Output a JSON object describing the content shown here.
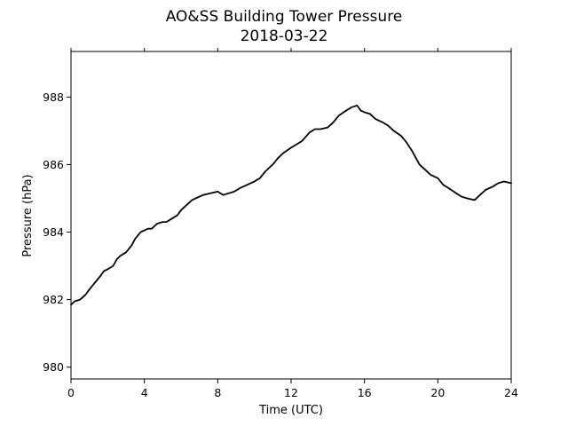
{
  "chart_data": {
    "type": "line",
    "title": "AO&SS Building Tower Pressure",
    "subtitle": "2018-03-22",
    "xlabel": "Time (UTC)",
    "ylabel": "Pressure (hPa)",
    "xlim": [
      0,
      24
    ],
    "ylim": [
      979.65,
      989.35
    ],
    "xticks": [
      0,
      4,
      8,
      12,
      16,
      20,
      24
    ],
    "yticks": [
      980,
      982,
      984,
      986,
      988
    ],
    "grid": false,
    "legend": "none",
    "line_color": "#000000",
    "series": [
      {
        "x": [
          0,
          0.2,
          0.5,
          0.8,
          1.0,
          1.3,
          1.6,
          1.8,
          2.0,
          2.3,
          2.5,
          2.7,
          3.0,
          3.3,
          3.5,
          3.8,
          4.0,
          4.2,
          4.4,
          4.7,
          5.0,
          5.2,
          5.5,
          5.8,
          6.0,
          6.3,
          6.6,
          6.8,
          7.2,
          7.6,
          8.0,
          8.3,
          8.6,
          8.9,
          9.2,
          9.6,
          10.0,
          10.3,
          10.6,
          11.0,
          11.3,
          11.6,
          12.0,
          12.3,
          12.6,
          13.0,
          13.3,
          13.6,
          14.0,
          14.3,
          14.6,
          15.0,
          15.3,
          15.6,
          15.8,
          16.0,
          16.3,
          16.6,
          17.0,
          17.3,
          17.6,
          18.0,
          18.3,
          18.6,
          19.0,
          19.3,
          19.6,
          20.0,
          20.3,
          20.6,
          21.0,
          21.3,
          21.6,
          22.0,
          22.3,
          22.6,
          23.0,
          23.3,
          23.6,
          24.0
        ],
        "y": [
          981.85,
          981.95,
          982.0,
          982.15,
          982.3,
          982.5,
          982.7,
          982.85,
          982.9,
          983.0,
          983.2,
          983.3,
          983.4,
          983.6,
          983.8,
          984.0,
          984.05,
          984.1,
          984.1,
          984.25,
          984.3,
          984.3,
          984.4,
          984.5,
          984.65,
          984.8,
          984.95,
          985.0,
          985.1,
          985.15,
          985.2,
          985.1,
          985.15,
          985.2,
          985.3,
          985.4,
          985.5,
          985.6,
          985.8,
          986.0,
          986.2,
          986.35,
          986.5,
          986.6,
          986.7,
          986.95,
          987.05,
          987.05,
          987.1,
          987.25,
          987.45,
          987.6,
          987.7,
          987.75,
          987.6,
          987.55,
          987.5,
          987.35,
          987.25,
          987.15,
          987.0,
          986.85,
          986.65,
          986.4,
          986.0,
          985.85,
          985.7,
          985.6,
          985.4,
          985.3,
          985.15,
          985.05,
          985.0,
          984.95,
          985.1,
          985.25,
          985.35,
          985.45,
          985.5,
          985.45
        ]
      }
    ]
  }
}
